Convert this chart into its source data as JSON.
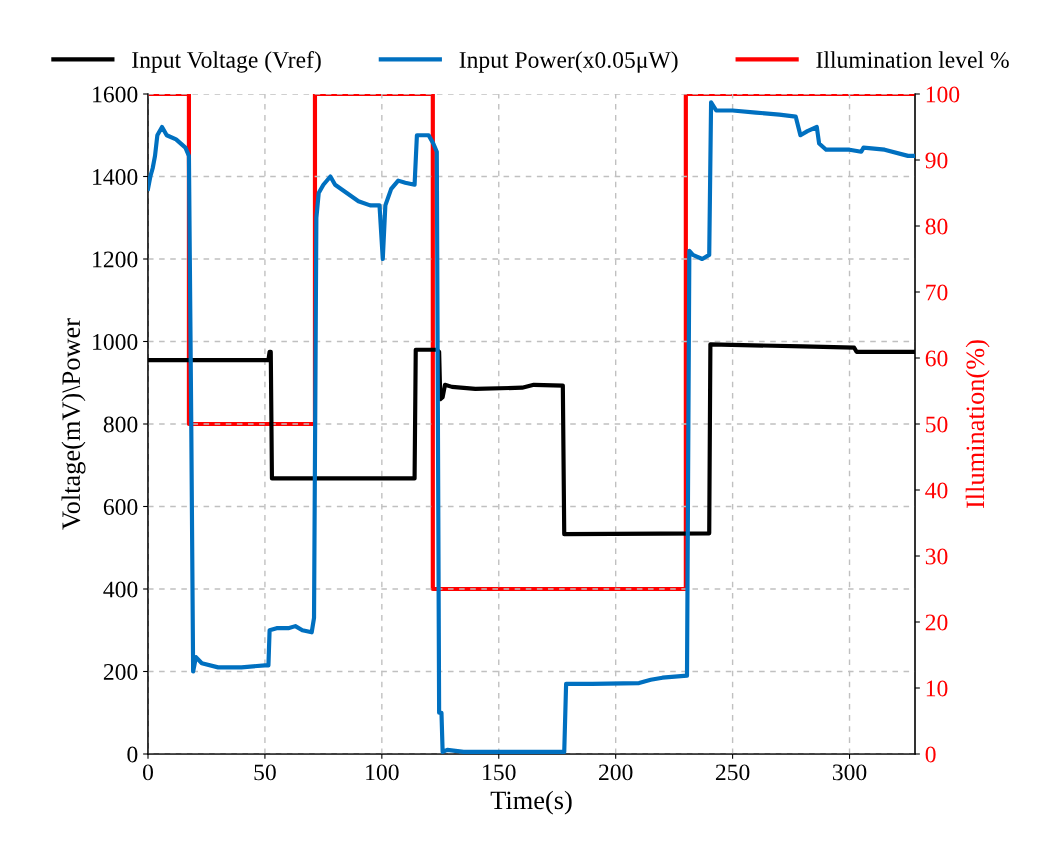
{
  "chart_data": {
    "type": "line",
    "xlabel": "Time(s)",
    "ylabel": "Voltage(mV)\\Power",
    "y2label": "Illumination(%)",
    "xlim": [
      0,
      328
    ],
    "xticks": [
      0,
      50,
      100,
      150,
      200,
      250,
      300
    ],
    "ylim": [
      0,
      1600
    ],
    "yticks": [
      0,
      200,
      400,
      600,
      800,
      1000,
      1200,
      1400,
      1600
    ],
    "y2lim": [
      0,
      100
    ],
    "y2ticks": [
      0,
      10,
      20,
      30,
      40,
      50,
      60,
      70,
      80,
      90,
      100
    ],
    "grid": true,
    "legend": "top",
    "marker": "none",
    "line_style": "solid",
    "series": [
      {
        "name": "Input Voltage (Vref)",
        "color": "#000000",
        "x": [
          0,
          51.5,
          52,
          52.5,
          53,
          114,
          114.5,
          123.5,
          124.5,
          125,
          126,
          127,
          130,
          140,
          160,
          165,
          177.4,
          178,
          240,
          240.5,
          280,
          302,
          303,
          328
        ],
        "values": [
          955,
          955,
          975,
          975,
          668,
          668,
          980,
          980,
          975,
          860,
          865,
          895,
          890,
          885,
          888,
          895,
          893,
          533,
          535,
          993,
          988,
          985,
          975,
          975
        ]
      },
      {
        "name": "Input Power(x0.05μW)",
        "color": "#0070c0",
        "x": [
          0,
          1,
          2,
          3,
          4,
          6,
          8,
          12,
          16,
          17.5,
          18.5,
          19.3,
          20.5,
          23,
          30,
          40,
          50,
          51.5,
          52,
          55,
          60,
          63,
          66,
          70,
          71,
          72,
          73,
          75,
          78,
          80,
          85,
          90,
          95,
          99,
          100.4,
          101.5,
          104,
          107,
          110,
          114,
          115,
          120,
          122,
          123.5,
          124.5,
          125.5,
          126,
          128,
          135,
          150,
          170,
          178,
          178.8,
          190,
          210,
          215,
          220,
          230.5,
          231.5,
          233,
          237,
          240,
          240.8,
          243,
          250,
          260,
          270,
          277,
          279,
          282,
          286,
          287,
          290,
          300,
          305,
          306,
          315,
          325,
          328
        ],
        "values": [
          1370,
          1400,
          1420,
          1450,
          1500,
          1520,
          1500,
          1490,
          1470,
          1450,
          800,
          200,
          235,
          220,
          210,
          210,
          215,
          215,
          300,
          305,
          305,
          310,
          300,
          295,
          330,
          1300,
          1360,
          1380,
          1400,
          1380,
          1360,
          1340,
          1330,
          1330,
          1200,
          1330,
          1370,
          1390,
          1385,
          1380,
          1500,
          1500,
          1480,
          1460,
          100,
          100,
          5,
          10,
          5,
          5,
          5,
          5,
          170,
          170,
          172,
          180,
          185,
          190,
          1220,
          1210,
          1200,
          1210,
          1580,
          1560,
          1560,
          1555,
          1550,
          1545,
          1500,
          1510,
          1520,
          1480,
          1465,
          1465,
          1460,
          1470,
          1465,
          1450,
          1450
        ]
      },
      {
        "name": "Illumination level %",
        "color": "#ff0000",
        "axis": "y2",
        "x": [
          0,
          17.5,
          17.5,
          71.4,
          71.4,
          121.8,
          121.8,
          230,
          230,
          328
        ],
        "values": [
          100,
          100,
          50,
          50,
          100,
          100,
          25,
          25,
          100,
          100
        ]
      }
    ]
  }
}
